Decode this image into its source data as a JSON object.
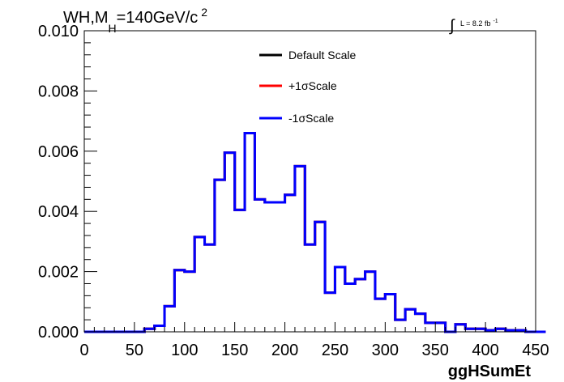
{
  "header": {
    "title_prefix": "WH,M",
    "title_sub": "H",
    "title_main": "=140GeV/c",
    "title_sup": "2",
    "lumi_integral": "∫",
    "lumi_text": "L = 8.2 fb",
    "lumi_sup": "-1"
  },
  "colors": {
    "default": "#000000",
    "plus": "#ff0000",
    "minus": "#0000ff",
    "frame": "#000000"
  },
  "chart_data": {
    "type": "line",
    "title": "WH,M_H=140GeV/c^2",
    "xlabel": "ggHSumEt",
    "ylabel": "",
    "xlim": [
      0,
      450
    ],
    "ylim": [
      0,
      0.01
    ],
    "xticks": [
      0,
      50,
      100,
      150,
      200,
      250,
      300,
      350,
      400,
      450
    ],
    "xtick_labels": [
      "0",
      "50",
      "100",
      "150",
      "200",
      "250",
      "300",
      "350",
      "400",
      "450"
    ],
    "yticks": [
      0.0,
      0.002,
      0.004,
      0.006,
      0.008,
      0.01
    ],
    "ytick_labels": [
      "0.000",
      "0.002",
      "0.004",
      "0.006",
      "0.008",
      "0.010"
    ],
    "legend_position": "top-center",
    "bin_width": 10,
    "bin_start": 0,
    "series": [
      {
        "name": "Default Scale",
        "color": "#000000",
        "values": [
          0,
          0,
          0,
          0,
          0,
          0,
          0.0001,
          0.0002,
          0.00085,
          0.00205,
          0.002,
          0.00315,
          0.0029,
          0.00505,
          0.00595,
          0.00405,
          0.0066,
          0.0044,
          0.0043,
          0.0043,
          0.00455,
          0.0055,
          0.0029,
          0.00365,
          0.0013,
          0.00215,
          0.0016,
          0.00175,
          0.002,
          0.0011,
          0.00125,
          0.0004,
          0.00075,
          0.0006,
          0.0003,
          0.0003,
          0,
          0.00025,
          0.0001,
          0.0001,
          5e-05,
          0.0001,
          5e-05,
          5e-05,
          0,
          0
        ]
      },
      {
        "name": "+1σScale",
        "color": "#ff0000",
        "values": [
          0,
          0,
          0,
          0,
          0,
          0,
          0.0001,
          0.0002,
          0.00085,
          0.00205,
          0.002,
          0.00315,
          0.0029,
          0.00505,
          0.00595,
          0.00405,
          0.0066,
          0.0044,
          0.0043,
          0.0043,
          0.00455,
          0.0055,
          0.0029,
          0.00365,
          0.0013,
          0.00215,
          0.0016,
          0.00175,
          0.002,
          0.0011,
          0.00125,
          0.0004,
          0.00075,
          0.0006,
          0.0003,
          0.0003,
          0,
          0.00025,
          0.0001,
          0.0001,
          5e-05,
          0.0001,
          5e-05,
          5e-05,
          0,
          0
        ]
      },
      {
        "name": "-1σScale",
        "color": "#0000ff",
        "values": [
          0,
          0,
          0,
          0,
          0,
          0,
          0.0001,
          0.0002,
          0.00085,
          0.00205,
          0.002,
          0.00315,
          0.0029,
          0.00505,
          0.00595,
          0.00405,
          0.0066,
          0.0044,
          0.0043,
          0.0043,
          0.00455,
          0.0055,
          0.0029,
          0.00365,
          0.0013,
          0.00215,
          0.0016,
          0.00175,
          0.002,
          0.0011,
          0.00125,
          0.0004,
          0.00075,
          0.0006,
          0.0003,
          0.0003,
          0,
          0.00025,
          0.0001,
          0.0001,
          5e-05,
          0.0001,
          5e-05,
          5e-05,
          0,
          0
        ]
      }
    ]
  }
}
